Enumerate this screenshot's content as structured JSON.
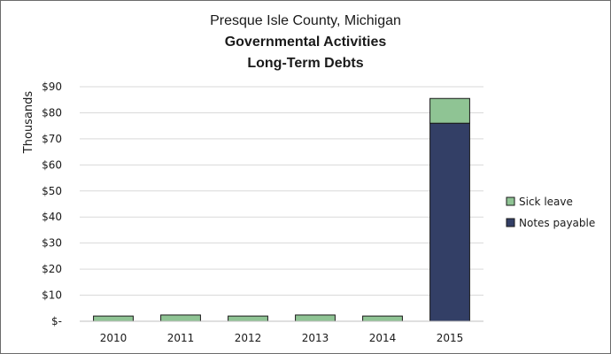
{
  "chart_data": {
    "type": "bar",
    "stacked": true,
    "title": "Presque Isle County, Michigan",
    "subtitle": [
      "Governmental Activities",
      "Long-Term Debts"
    ],
    "ylabel": "Thousands",
    "xlabel": "",
    "categories": [
      "2010",
      "2011",
      "2012",
      "2013",
      "2014",
      "2015"
    ],
    "series": [
      {
        "name": "Notes payable",
        "color": "#333f66",
        "values": [
          0,
          0,
          0,
          0,
          0,
          76
        ]
      },
      {
        "name": "Sick leave",
        "color": "#8fc494",
        "values": [
          2.0,
          2.4,
          2.0,
          2.4,
          2.0,
          9.5
        ]
      }
    ],
    "ylim": [
      0,
      90
    ],
    "yticks": [
      0,
      10,
      20,
      30,
      40,
      50,
      60,
      70,
      80,
      90
    ],
    "ytick_labels": [
      "$-",
      "$10",
      "$20",
      "$30",
      "$40",
      "$50",
      "$60",
      "$70",
      "$80",
      "$90"
    ],
    "legend": {
      "placement": "right",
      "order": [
        "Sick leave",
        "Notes payable"
      ]
    },
    "grid": true
  }
}
